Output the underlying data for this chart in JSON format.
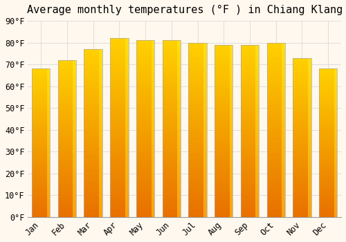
{
  "title": "Average monthly temperatures (°F ) in Chiang Klang",
  "months": [
    "Jan",
    "Feb",
    "Mar",
    "Apr",
    "May",
    "Jun",
    "Jul",
    "Aug",
    "Sep",
    "Oct",
    "Nov",
    "Dec"
  ],
  "values": [
    68,
    72,
    77,
    82,
    81,
    81,
    80,
    79,
    79,
    80,
    73,
    68
  ],
  "bar_color_bottom": "#E87000",
  "bar_color_top": "#FFD040",
  "bar_color_right": "#FFB800",
  "background_color": "#FFF8EE",
  "grid_color": "#DDDDDD",
  "ylim": [
    0,
    90
  ],
  "yticks": [
    0,
    10,
    20,
    30,
    40,
    50,
    60,
    70,
    80,
    90
  ],
  "title_fontsize": 11,
  "tick_fontsize": 8.5,
  "font_family": "monospace",
  "bar_width": 0.7
}
